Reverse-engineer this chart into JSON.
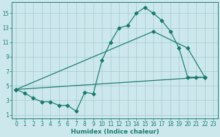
{
  "xlabel": "Humidex (Indice chaleur)",
  "bg_color": "#cce8ec",
  "grid_color": "#aacdd4",
  "line_color": "#1a7a6e",
  "xlim": [
    -0.5,
    23.5
  ],
  "ylim": [
    0.5,
    16.5
  ],
  "xticks": [
    0,
    1,
    2,
    3,
    4,
    5,
    6,
    7,
    8,
    9,
    10,
    11,
    12,
    13,
    14,
    15,
    16,
    17,
    18,
    19,
    20,
    21,
    22,
    23
  ],
  "yticks": [
    1,
    3,
    5,
    7,
    9,
    11,
    13,
    15
  ],
  "line1_x": [
    0,
    1,
    2,
    3,
    4,
    5,
    6,
    7,
    8,
    9,
    10,
    11,
    12,
    13,
    14,
    15,
    16,
    17,
    18,
    19,
    20,
    21,
    22
  ],
  "line1_y": [
    4.5,
    4.0,
    3.3,
    2.8,
    2.8,
    2.3,
    2.3,
    1.5,
    4.1,
    3.9,
    8.5,
    11.0,
    13.0,
    13.3,
    15.0,
    15.8,
    15.0,
    14.0,
    12.5,
    10.2,
    6.2,
    6.2,
    6.2
  ],
  "line2_x": [
    0,
    16,
    20,
    22
  ],
  "line2_y": [
    4.5,
    12.5,
    10.2,
    6.2
  ],
  "line3_x": [
    0,
    22
  ],
  "line3_y": [
    4.5,
    6.2
  ],
  "marker": "D",
  "markersize": 2.5,
  "linewidth": 0.9,
  "tick_fontsize": 5.5,
  "xlabel_fontsize": 6.5
}
